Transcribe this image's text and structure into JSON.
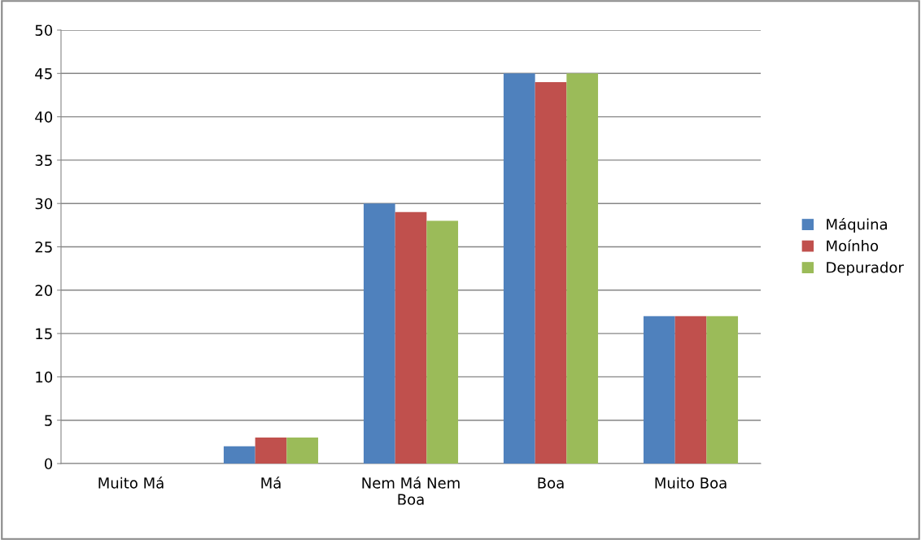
{
  "chart_data": {
    "type": "bar",
    "categories": [
      "Muito Má",
      "Má",
      "Nem Má Nem\nBoa",
      "Boa",
      "Muito Boa"
    ],
    "series": [
      {
        "name": "Máquina",
        "color": "#4f81bd",
        "values": [
          0,
          2,
          30,
          45,
          17
        ]
      },
      {
        "name": "Moínho",
        "color": "#c0504d",
        "values": [
          0,
          3,
          29,
          44,
          17
        ]
      },
      {
        "name": "Depurador",
        "color": "#9bbb59",
        "values": [
          0,
          3,
          28,
          45,
          17
        ]
      }
    ],
    "ylim": [
      0,
      50
    ],
    "yticks": [
      0,
      5,
      10,
      15,
      20,
      25,
      30,
      35,
      40,
      45,
      50
    ],
    "grid": "y",
    "legend": "right"
  }
}
